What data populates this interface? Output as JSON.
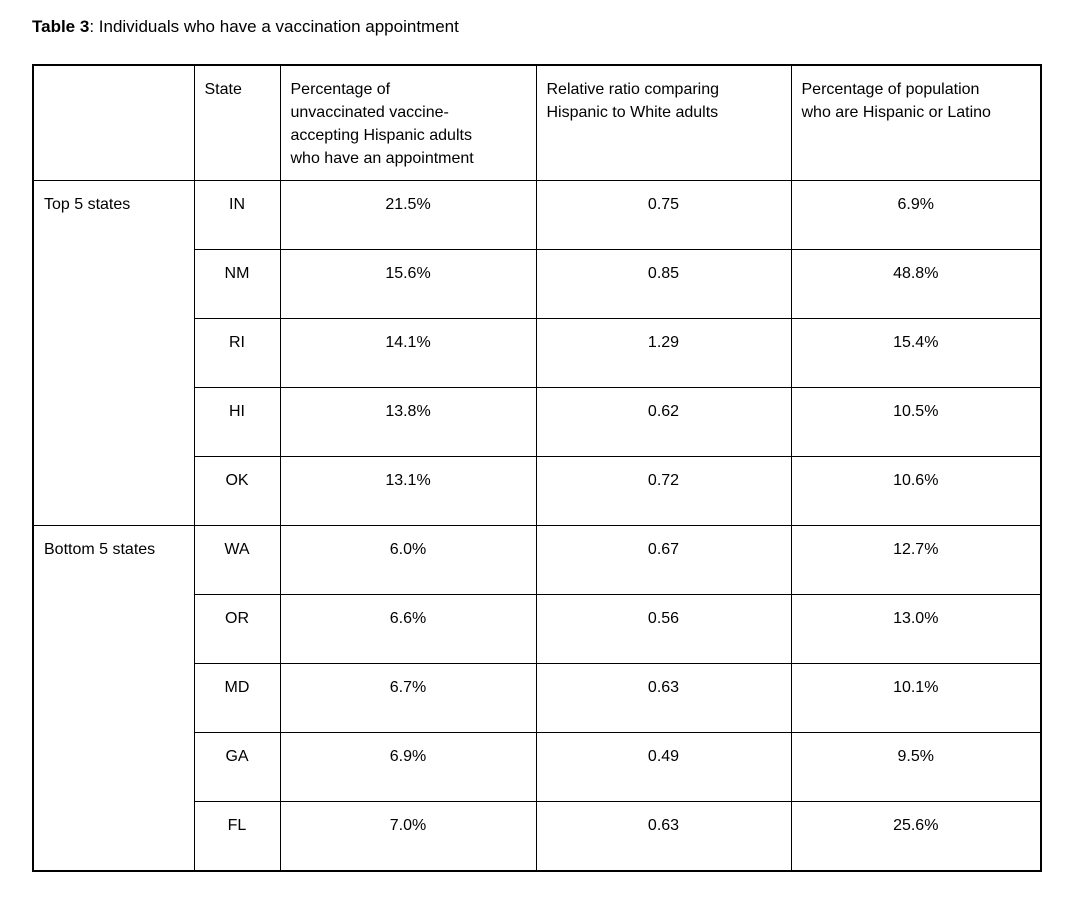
{
  "title": {
    "label": "Table 3",
    "rest": ": Individuals who have a vaccination appointment"
  },
  "table": {
    "headers": [
      "",
      "State",
      "Percentage of unvaccinated vaccine-accepting Hispanic adults who have an appointment",
      "Relative ratio comparing Hispanic to White adults",
      "Percentage of population who are Hispanic or Latino"
    ],
    "groups": [
      {
        "label": "Top 5 states",
        "rows": [
          {
            "state": "IN",
            "pct_appointment": "21.5%",
            "relative_ratio": "0.75",
            "pct_hispanic": "6.9%"
          },
          {
            "state": "NM",
            "pct_appointment": "15.6%",
            "relative_ratio": "0.85",
            "pct_hispanic": "48.8%"
          },
          {
            "state": "RI",
            "pct_appointment": "14.1%",
            "relative_ratio": "1.29",
            "pct_hispanic": "15.4%"
          },
          {
            "state": "HI",
            "pct_appointment": "13.8%",
            "relative_ratio": "0.62",
            "pct_hispanic": "10.5%"
          },
          {
            "state": "OK",
            "pct_appointment": "13.1%",
            "relative_ratio": "0.72",
            "pct_hispanic": "10.6%"
          }
        ]
      },
      {
        "label": "Bottom 5 states",
        "rows": [
          {
            "state": "WA",
            "pct_appointment": "6.0%",
            "relative_ratio": "0.67",
            "pct_hispanic": "12.7%"
          },
          {
            "state": "OR",
            "pct_appointment": "6.6%",
            "relative_ratio": "0.56",
            "pct_hispanic": "13.0%"
          },
          {
            "state": "MD",
            "pct_appointment": "6.7%",
            "relative_ratio": "0.63",
            "pct_hispanic": "10.1%"
          },
          {
            "state": "GA",
            "pct_appointment": "6.9%",
            "relative_ratio": "0.49",
            "pct_hispanic": "9.5%"
          },
          {
            "state": "FL",
            "pct_appointment": "7.0%",
            "relative_ratio": "0.63",
            "pct_hispanic": "25.6%"
          }
        ]
      }
    ]
  },
  "colors": {
    "background": "#ffffff",
    "text": "#000000",
    "border": "#000000"
  }
}
